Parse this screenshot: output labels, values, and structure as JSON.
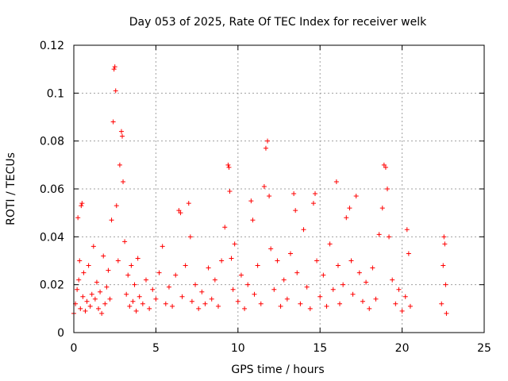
{
  "chart_data": {
    "type": "scatter",
    "title": "Day 053 of 2025, Rate Of TEC Index for receiver welk",
    "xlabel": "GPS time / hours",
    "ylabel": "ROTI / TECUs",
    "xlim": [
      0,
      25
    ],
    "ylim": [
      0,
      0.12
    ],
    "x_ticks": [
      0,
      5,
      10,
      15,
      20,
      25
    ],
    "x_tick_labels": [
      "0",
      "5",
      "10",
      "15",
      "20",
      "25"
    ],
    "y_ticks": [
      0,
      0.02,
      0.04,
      0.06,
      0.08,
      0.1,
      0.12
    ],
    "y_tick_labels": [
      "0",
      "0.02",
      "0.04",
      "0.06",
      "0.08",
      "0.1",
      "0.12"
    ],
    "grid": true,
    "marker": "plus",
    "color": "#ff0000",
    "series": [
      {
        "points": [
          [
            0.0,
            0.008
          ],
          [
            0.1,
            0.012
          ],
          [
            0.2,
            0.018
          ],
          [
            0.25,
            0.048
          ],
          [
            0.3,
            0.022
          ],
          [
            0.35,
            0.03
          ],
          [
            0.4,
            0.01
          ],
          [
            0.45,
            0.053
          ],
          [
            0.5,
            0.054
          ],
          [
            0.55,
            0.015
          ],
          [
            0.6,
            0.025
          ],
          [
            0.7,
            0.009
          ],
          [
            0.8,
            0.013
          ],
          [
            0.9,
            0.028
          ],
          [
            1.0,
            0.011
          ],
          [
            1.1,
            0.016
          ],
          [
            1.2,
            0.036
          ],
          [
            1.3,
            0.014
          ],
          [
            1.4,
            0.021
          ],
          [
            1.5,
            0.01
          ],
          [
            1.6,
            0.017
          ],
          [
            1.7,
            0.008
          ],
          [
            1.8,
            0.032
          ],
          [
            1.9,
            0.012
          ],
          [
            2.0,
            0.019
          ],
          [
            2.1,
            0.026
          ],
          [
            2.2,
            0.014
          ],
          [
            2.3,
            0.047
          ],
          [
            2.4,
            0.088
          ],
          [
            2.45,
            0.11
          ],
          [
            2.5,
            0.111
          ],
          [
            2.55,
            0.101
          ],
          [
            2.6,
            0.053
          ],
          [
            2.7,
            0.03
          ],
          [
            2.8,
            0.07
          ],
          [
            2.9,
            0.084
          ],
          [
            2.95,
            0.082
          ],
          [
            3.0,
            0.063
          ],
          [
            3.1,
            0.038
          ],
          [
            3.2,
            0.016
          ],
          [
            3.3,
            0.024
          ],
          [
            3.4,
            0.011
          ],
          [
            3.5,
            0.028
          ],
          [
            3.6,
            0.013
          ],
          [
            3.7,
            0.02
          ],
          [
            3.8,
            0.009
          ],
          [
            3.9,
            0.031
          ],
          [
            4.0,
            0.015
          ],
          [
            4.2,
            0.012
          ],
          [
            4.4,
            0.022
          ],
          [
            4.6,
            0.01
          ],
          [
            4.8,
            0.018
          ],
          [
            5.0,
            0.014
          ],
          [
            5.2,
            0.025
          ],
          [
            5.4,
            0.036
          ],
          [
            5.6,
            0.012
          ],
          [
            5.8,
            0.019
          ],
          [
            6.0,
            0.011
          ],
          [
            6.2,
            0.024
          ],
          [
            6.4,
            0.051
          ],
          [
            6.5,
            0.05
          ],
          [
            6.6,
            0.015
          ],
          [
            6.8,
            0.028
          ],
          [
            7.0,
            0.054
          ],
          [
            7.1,
            0.04
          ],
          [
            7.2,
            0.013
          ],
          [
            7.4,
            0.02
          ],
          [
            7.6,
            0.01
          ],
          [
            7.8,
            0.017
          ],
          [
            8.0,
            0.012
          ],
          [
            8.2,
            0.027
          ],
          [
            8.4,
            0.014
          ],
          [
            8.6,
            0.022
          ],
          [
            8.8,
            0.011
          ],
          [
            9.0,
            0.03
          ],
          [
            9.2,
            0.044
          ],
          [
            9.4,
            0.07
          ],
          [
            9.45,
            0.069
          ],
          [
            9.5,
            0.059
          ],
          [
            9.6,
            0.031
          ],
          [
            9.7,
            0.018
          ],
          [
            9.8,
            0.037
          ],
          [
            10.0,
            0.013
          ],
          [
            10.2,
            0.024
          ],
          [
            10.4,
            0.01
          ],
          [
            10.6,
            0.02
          ],
          [
            10.8,
            0.055
          ],
          [
            10.9,
            0.047
          ],
          [
            11.0,
            0.016
          ],
          [
            11.2,
            0.028
          ],
          [
            11.4,
            0.012
          ],
          [
            11.6,
            0.061
          ],
          [
            11.7,
            0.077
          ],
          [
            11.8,
            0.08
          ],
          [
            11.9,
            0.057
          ],
          [
            12.0,
            0.035
          ],
          [
            12.2,
            0.018
          ],
          [
            12.4,
            0.03
          ],
          [
            12.6,
            0.011
          ],
          [
            12.8,
            0.022
          ],
          [
            13.0,
            0.014
          ],
          [
            13.2,
            0.033
          ],
          [
            13.4,
            0.058
          ],
          [
            13.5,
            0.051
          ],
          [
            13.6,
            0.025
          ],
          [
            13.8,
            0.012
          ],
          [
            14.0,
            0.043
          ],
          [
            14.2,
            0.019
          ],
          [
            14.4,
            0.01
          ],
          [
            14.6,
            0.054
          ],
          [
            14.7,
            0.058
          ],
          [
            14.8,
            0.03
          ],
          [
            15.0,
            0.015
          ],
          [
            15.2,
            0.024
          ],
          [
            15.4,
            0.011
          ],
          [
            15.6,
            0.037
          ],
          [
            15.8,
            0.018
          ],
          [
            16.0,
            0.063
          ],
          [
            16.1,
            0.028
          ],
          [
            16.2,
            0.012
          ],
          [
            16.4,
            0.02
          ],
          [
            16.6,
            0.048
          ],
          [
            16.8,
            0.052
          ],
          [
            16.9,
            0.03
          ],
          [
            17.0,
            0.016
          ],
          [
            17.2,
            0.057
          ],
          [
            17.4,
            0.025
          ],
          [
            17.6,
            0.013
          ],
          [
            17.8,
            0.021
          ],
          [
            18.0,
            0.01
          ],
          [
            18.2,
            0.027
          ],
          [
            18.4,
            0.014
          ],
          [
            18.6,
            0.041
          ],
          [
            18.8,
            0.052
          ],
          [
            18.9,
            0.07
          ],
          [
            19.0,
            0.069
          ],
          [
            19.1,
            0.06
          ],
          [
            19.2,
            0.04
          ],
          [
            19.4,
            0.022
          ],
          [
            19.6,
            0.012
          ],
          [
            19.8,
            0.018
          ],
          [
            20.0,
            0.009
          ],
          [
            20.2,
            0.015
          ],
          [
            20.3,
            0.043
          ],
          [
            20.4,
            0.033
          ],
          [
            20.5,
            0.011
          ],
          [
            22.4,
            0.012
          ],
          [
            22.5,
            0.028
          ],
          [
            22.55,
            0.04
          ],
          [
            22.6,
            0.037
          ],
          [
            22.65,
            0.02
          ],
          [
            22.7,
            0.008
          ]
        ]
      }
    ]
  }
}
